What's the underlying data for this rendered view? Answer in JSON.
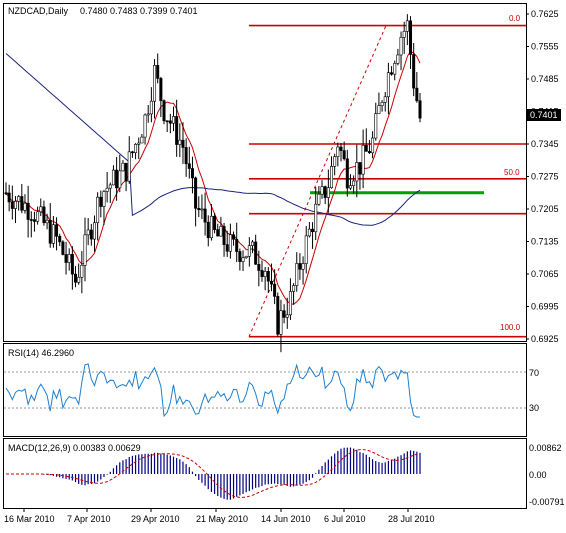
{
  "chart_data": [
    {
      "type": "candlestick",
      "header": {
        "symbol": "NZDCAD,Daily",
        "open": "0.7480",
        "high": "0.7483",
        "low": "0.7399",
        "close": "0.7401"
      },
      "yticks": [
        "0.7625",
        "0.7555",
        "0.7485",
        "0.7415",
        "0.7345",
        "0.7275",
        "0.7205",
        "0.7135",
        "0.7065",
        "0.6995",
        "0.6925"
      ],
      "last_price": "0.7401",
      "xticks": [
        "16 Mar 2010",
        "7 Apr 2010",
        "29 Apr 2010",
        "21 May 2010",
        "14 Jun 2010",
        "6 Jul 2010",
        "28 Jul 2010"
      ],
      "fib_labels": [
        "0.0",
        "50.0",
        "100.0"
      ],
      "fib_levels": [
        0.76,
        0.7345,
        0.727,
        0.7195,
        0.693
      ],
      "support_line": {
        "value": 0.724,
        "color": "#00a000"
      },
      "colors": {
        "red_line": "#cc0000",
        "blue_ma": "#1a237e",
        "red_ma": "#cc0000",
        "candle": "#000000"
      }
    },
    {
      "type": "line",
      "label": "RSI(14) 46.2960",
      "yticks": [
        "70",
        "30"
      ],
      "levels": [
        70,
        30
      ],
      "color": "#1e7fd0"
    },
    {
      "type": "histogram",
      "label": "MACD(12,26,9) 0.00383 0.00629",
      "yticks": [
        "0.00862",
        "0.00",
        "-0.00791"
      ],
      "colors": {
        "bars": "#000080",
        "signal": "#cc0000"
      }
    }
  ]
}
